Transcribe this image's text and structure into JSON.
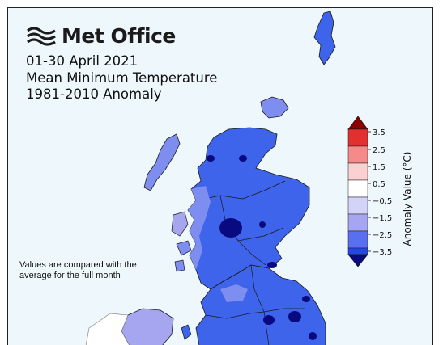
{
  "logo": {
    "name": "Met Office",
    "icon": "met-office-wave-logo-icon"
  },
  "title": {
    "line1": "01-30 April 2021",
    "line2": "Mean Minimum Temperature",
    "line3": "1981-2010 Anomaly"
  },
  "note": "Values are compared with the average for the full month",
  "legend": {
    "label": "Anomaly Value (°C)",
    "ticks": [
      "3.5",
      "2.5",
      "1.5",
      "0.5",
      "−0.5",
      "−1.5",
      "−2.5",
      "−3.5"
    ],
    "colors": {
      "over_max": "#8b0000",
      "bins": [
        "#e03030",
        "#f58a8a",
        "#fbd0d0",
        "#ffffff",
        "#d3d3f8",
        "#a6a6f0",
        "#5a6ef0",
        "#2645e6"
      ],
      "under_min": "#0a0a80"
    }
  },
  "map_colors": {
    "sea": "#eef7fb",
    "strong_cold": "#0a0a80",
    "cold": "#3d64ea",
    "moderate_cold": "#7d8ef0",
    "slight_cold": "#a6a6f0",
    "near_normal": "#ffffff",
    "border": "#1a1a1a"
  }
}
